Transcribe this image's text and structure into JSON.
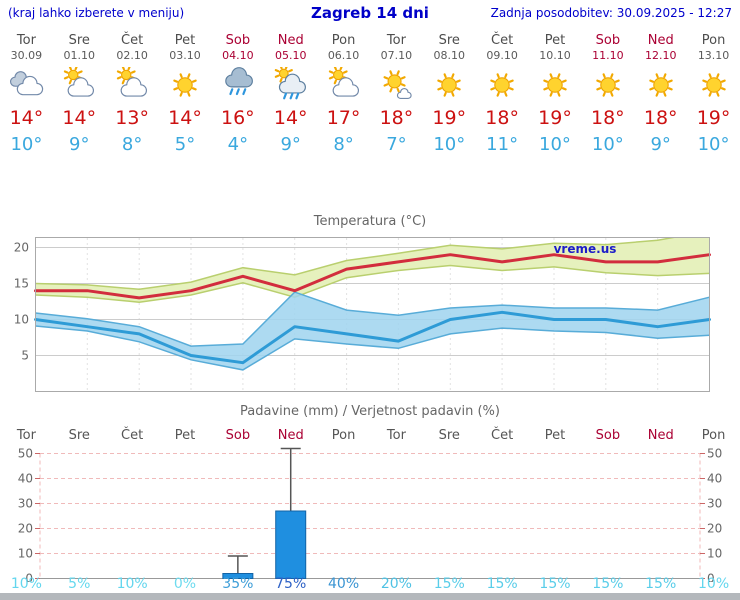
{
  "header": {
    "left_note": "(kraj lahko izberete v meniju)",
    "title": "Zagreb 14 dni",
    "updated": "Zadnja posodobitev: 30.09.2025 - 12:27"
  },
  "colors": {
    "header_text": "#0000cc",
    "weekend_text": "#aa0033",
    "weekday_text": "#4d4d4d",
    "high_temp": "#cc1111",
    "low_temp": "#3aa8de",
    "bar_blue": "#1f8fe0",
    "max_line": "#d22d3d",
    "min_line": "#2e9bd6"
  },
  "days": [
    {
      "name": "Tor",
      "date": "30.09",
      "icon": "cloudy",
      "high": "14",
      "low": "10",
      "weekend": false
    },
    {
      "name": "Sre",
      "date": "01.10",
      "icon": "sun-cloud",
      "high": "14",
      "low": "9",
      "weekend": false
    },
    {
      "name": "Čet",
      "date": "02.10",
      "icon": "sun-cloud",
      "high": "13",
      "low": "8",
      "weekend": false
    },
    {
      "name": "Pet",
      "date": "03.10",
      "icon": "sunny",
      "high": "14",
      "low": "5",
      "weekend": false
    },
    {
      "name": "Sob",
      "date": "04.10",
      "icon": "rain",
      "high": "16",
      "low": "4",
      "weekend": true
    },
    {
      "name": "Ned",
      "date": "05.10",
      "icon": "rain-sun",
      "high": "14",
      "low": "9",
      "weekend": true
    },
    {
      "name": "Pon",
      "date": "06.10",
      "icon": "sun-cloud",
      "high": "17",
      "low": "8",
      "weekend": false
    },
    {
      "name": "Tor",
      "date": "07.10",
      "icon": "mostly-sunny",
      "high": "18",
      "low": "7",
      "weekend": false
    },
    {
      "name": "Sre",
      "date": "08.10",
      "icon": "sunny",
      "high": "19",
      "low": "10",
      "weekend": false
    },
    {
      "name": "Čet",
      "date": "09.10",
      "icon": "sunny",
      "high": "18",
      "low": "11",
      "weekend": false
    },
    {
      "name": "Pet",
      "date": "10.10",
      "icon": "sunny",
      "high": "19",
      "low": "10",
      "weekend": false
    },
    {
      "name": "Sob",
      "date": "11.10",
      "icon": "sunny",
      "high": "18",
      "low": "10",
      "weekend": true
    },
    {
      "name": "Ned",
      "date": "12.10",
      "icon": "sunny",
      "high": "18",
      "low": "9",
      "weekend": true
    },
    {
      "name": "Pon",
      "date": "13.10",
      "icon": "sunny",
      "high": "19",
      "low": "10",
      "weekend": false
    }
  ],
  "chart_data": [
    {
      "type": "line",
      "title": "Temperatura (°C)",
      "watermark": "vreme.us",
      "x_labels": [
        "Tor",
        "Sre",
        "Čet",
        "Pet",
        "Sob",
        "Ned",
        "Pon",
        "Tor",
        "Sre",
        "Čet",
        "Pet",
        "Sob",
        "Ned",
        "Pon"
      ],
      "yticks": [
        5,
        10,
        15,
        20
      ],
      "ylim": [
        0,
        21.5
      ],
      "grid": true,
      "legend": "none",
      "series": [
        {
          "name": "max temperature",
          "color": "#d22d3d",
          "values": [
            14,
            14,
            13,
            14,
            16,
            14,
            17,
            18,
            19,
            18,
            19,
            18,
            18,
            19
          ]
        },
        {
          "name": "min temperature",
          "color": "#2e9bd6",
          "values": [
            10,
            9,
            8,
            5,
            4,
            9,
            8,
            7,
            10,
            11,
            10,
            10,
            9,
            10
          ]
        }
      ],
      "bands": [
        {
          "name": "max temperature range",
          "fill": "#e6f1bd",
          "edge": "#b9cf6e",
          "opacity": 1,
          "upper": [
            15,
            14.8,
            14.2,
            15.2,
            17.2,
            16.2,
            18.2,
            19.2,
            20.3,
            19.8,
            20.6,
            20.4,
            21,
            22.3
          ],
          "lower": [
            13.4,
            13.1,
            12.4,
            13.4,
            15.1,
            13.1,
            15.8,
            16.8,
            17.5,
            16.8,
            17.3,
            16.5,
            16.1,
            16.4
          ]
        },
        {
          "name": "min temperature range",
          "fill": "#9fd3ef",
          "edge": "#58acd8",
          "opacity": 0.85,
          "upper": [
            10.9,
            10.1,
            9,
            6.3,
            6.6,
            13.8,
            11.3,
            10.6,
            11.6,
            12,
            11.6,
            11.6,
            11.3,
            13.1
          ],
          "lower": [
            9.1,
            8.4,
            6.9,
            4.4,
            3,
            7.3,
            6.6,
            6,
            8,
            8.8,
            8.4,
            8.2,
            7.4,
            7.8
          ]
        }
      ]
    },
    {
      "type": "bar",
      "title": "Padavine (mm) / Verjetnost padavin (%)",
      "x_labels": [
        "Tor",
        "Sre",
        "Čet",
        "Pet",
        "Sob",
        "Ned",
        "Pon",
        "Tor",
        "Sre",
        "Čet",
        "Pet",
        "Sob",
        "Ned",
        "Pon"
      ],
      "weekend_indices": [
        4,
        5,
        11,
        12
      ],
      "yticks": [
        0,
        10,
        20,
        30,
        40,
        50
      ],
      "ylim": [
        0,
        52
      ],
      "bar_color": "#1f8fe0",
      "bars": [
        {
          "day_index": 4,
          "day": "Sob 04.10",
          "value": 2,
          "whisker": 9
        },
        {
          "day_index": 5,
          "day": "Ned 05.10",
          "value": 27,
          "whisker": 52
        }
      ],
      "probabilities": [
        {
          "label": "10%",
          "color": "#63d6ee"
        },
        {
          "label": "5%",
          "color": "#66d8ee"
        },
        {
          "label": "10%",
          "color": "#63d6ee"
        },
        {
          "label": "0%",
          "color": "#6edbef"
        },
        {
          "label": "35%",
          "color": "#3e9ed8"
        },
        {
          "label": "75%",
          "color": "#2f62c6"
        },
        {
          "label": "40%",
          "color": "#3b95d3"
        },
        {
          "label": "20%",
          "color": "#4fc2e4"
        },
        {
          "label": "15%",
          "color": "#59cde9"
        },
        {
          "label": "15%",
          "color": "#59cde9"
        },
        {
          "label": "15%",
          "color": "#59cde9"
        },
        {
          "label": "15%",
          "color": "#59cde9"
        },
        {
          "label": "15%",
          "color": "#59cde9"
        },
        {
          "label": "10%",
          "color": "#63d6ee"
        }
      ]
    }
  ]
}
